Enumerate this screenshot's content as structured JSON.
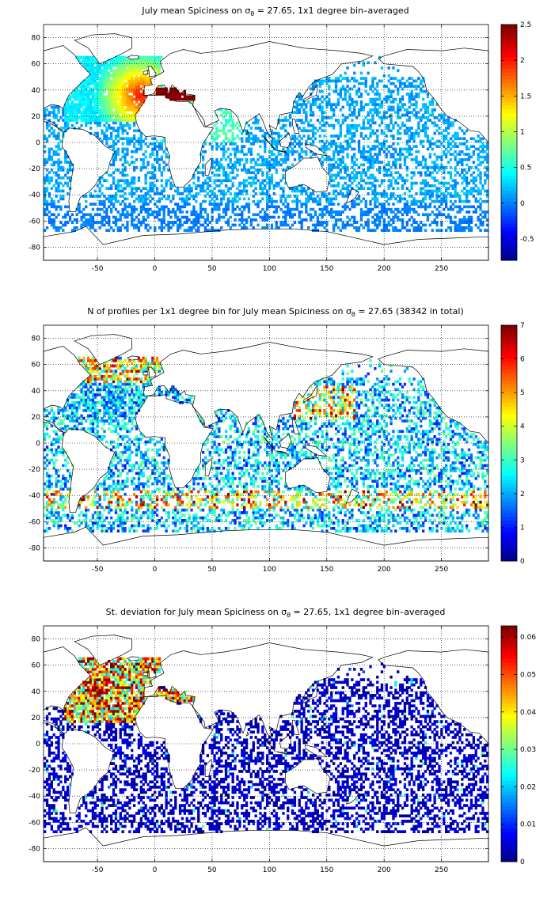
{
  "panels": [
    {
      "title_pre": "July mean Spiciness on σ",
      "title_sub": "θ",
      "title_post": " = 27.65, 1x1 degree bin–averaged",
      "colorbar": {
        "ticks": [
          "2.5",
          "2",
          "1.5",
          "1",
          "0.5",
          "0",
          "-0.5"
        ],
        "range": [
          -0.8,
          2.5
        ]
      },
      "xticks": [
        "-50",
        "0",
        "50",
        "100",
        "150",
        "200",
        "250"
      ],
      "yticks": [
        "80",
        "60",
        "40",
        "20",
        "0",
        "-20",
        "-40",
        "-60",
        "-80"
      ]
    },
    {
      "title_pre": "N of profiles per 1x1 degree bin for July mean Spiciness on σ",
      "title_sub": "θ",
      "title_post": " = 27.65 (38342 in total)",
      "colorbar": {
        "ticks": [
          "7",
          "6",
          "5",
          "4",
          "3",
          "2",
          "1",
          "0"
        ],
        "range": [
          0,
          7
        ]
      },
      "xticks": [
        "-50",
        "0",
        "50",
        "100",
        "150",
        "200",
        "250"
      ],
      "yticks": [
        "80",
        "60",
        "40",
        "20",
        "0",
        "-20",
        "-40",
        "-60",
        "-80"
      ]
    },
    {
      "title_pre": "St. deviation for July mean Spiciness on σ",
      "title_sub": "θ",
      "title_post": " = 27.65, 1x1 degree bin–averaged",
      "colorbar": {
        "ticks": [
          "0.06",
          "0.05",
          "0.04",
          "0.03",
          "0.02",
          "0.01",
          "0"
        ],
        "range": [
          0,
          0.063
        ]
      },
      "xticks": [
        "-50",
        "0",
        "50",
        "100",
        "150",
        "200",
        "250"
      ],
      "yticks": [
        "80",
        "60",
        "40",
        "20",
        "0",
        "-20",
        "-40",
        "-60",
        "-80"
      ]
    }
  ],
  "colors": {
    "jet_low": "#00008f",
    "jet_mid": "#7fff7f",
    "jet_high": "#800000",
    "land": "#ffffff",
    "coast": "#000000"
  }
}
